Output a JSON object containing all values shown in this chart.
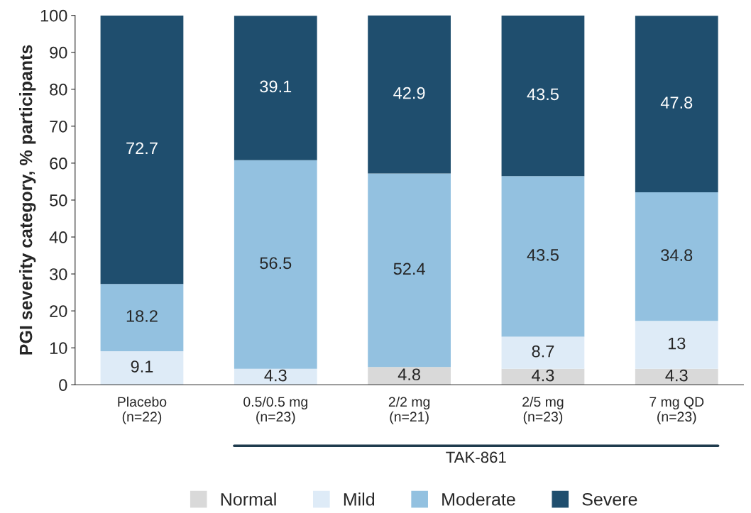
{
  "chart_data": {
    "type": "bar",
    "stacked": true,
    "ylabel": "PGI severity category, % participants",
    "categories": [
      "Placebo\n(n=22)",
      "0.5/0.5 mg\n(n=23)",
      "2/2 mg\n(n=21)",
      "2/5 mg\n(n=23)",
      "7 mg QD\n(n=23)"
    ],
    "series": [
      {
        "name": "Normal",
        "color": "#d9d9d9",
        "values": [
          0,
          0,
          4.8,
          4.3,
          4.3
        ],
        "value_labels": [
          null,
          null,
          "4.8",
          "4.3",
          "4.3"
        ]
      },
      {
        "name": "Mild",
        "color": "#deebf7",
        "values": [
          9.1,
          4.3,
          0,
          8.7,
          13
        ],
        "value_labels": [
          "9.1",
          "4.3",
          null,
          "8.7",
          "13"
        ]
      },
      {
        "name": "Moderate",
        "color": "#93c1e0",
        "values": [
          18.2,
          56.5,
          52.4,
          43.5,
          34.8
        ],
        "value_labels": [
          "18.2",
          "56.5",
          "52.4",
          "43.5",
          "34.8"
        ]
      },
      {
        "name": "Severe",
        "color": "#1f4e6e",
        "values": [
          72.7,
          39.1,
          42.9,
          43.5,
          47.8
        ],
        "value_labels": [
          "72.7",
          "39.1",
          "42.9",
          "43.5",
          "47.8"
        ]
      }
    ],
    "ylim": [
      0,
      100
    ],
    "yticks": [
      0,
      10,
      20,
      30,
      40,
      50,
      60,
      70,
      80,
      90,
      100
    ],
    "annotations": [
      "TAK-861"
    ],
    "legend": "bottom",
    "grid": false
  }
}
